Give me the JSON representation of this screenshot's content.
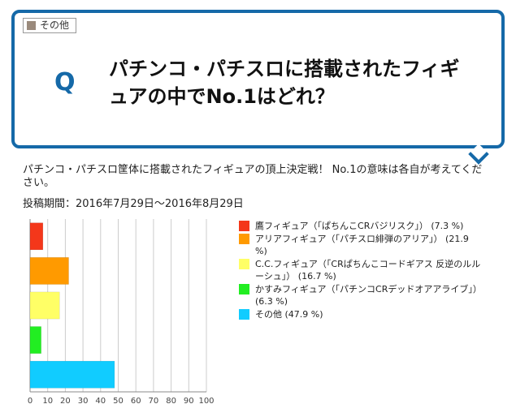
{
  "category": {
    "label": "その他",
    "icon": "square-icon",
    "color": "#9a8a7c"
  },
  "question": {
    "letter": "Q",
    "title": "パチンコ・パチスロに搭載されたフィギュアの中でNo.1はどれ？"
  },
  "description": "パチンコ・パチスロ筐体に搭載されたフィギュアの頂上決定戦！ No.1の意味は各自が考えてください。",
  "period": "投稿期間：2016年7月29日〜2016年8月29日",
  "chart_data": {
    "type": "bar",
    "orientation": "horizontal",
    "categories": [
      "鷹フィギュア（「ぱちんこCRバジリスク」）",
      "アリアフィギュア（「パチスロ緋弾のアリア」）",
      "C.C.フィギュア（「CRぱちんこコードギアス 反逆のルルーシュ」）",
      "かすみフィギュア（「パチンコCRデッドオアアライブ」）",
      "その他"
    ],
    "values": [
      7.3,
      21.9,
      16.7,
      6.3,
      47.9
    ],
    "colors": [
      "#f4371a",
      "#ff9a00",
      "#ffff66",
      "#22ee22",
      "#11ccff"
    ],
    "legend_labels": [
      "鷹フィギュア（「ぱちんこCRバジリスク」） (7.3 %)",
      "アリアフィギュア（「パチスロ緋弾のアリア」） (21.9 %)",
      "C.C.フィギュア（「CRぱちんこコードギアス 反逆のルルーシュ」） (16.7 %)",
      "かすみフィギュア（「パチンコCRデッドオアアライブ」） (6.3 %)",
      "その他 (47.9 %)"
    ],
    "xlim": [
      0,
      100
    ],
    "xticks": [
      0,
      10,
      20,
      30,
      40,
      50,
      60,
      70,
      80,
      90,
      100
    ],
    "grid": true,
    "legend_position": "right"
  }
}
